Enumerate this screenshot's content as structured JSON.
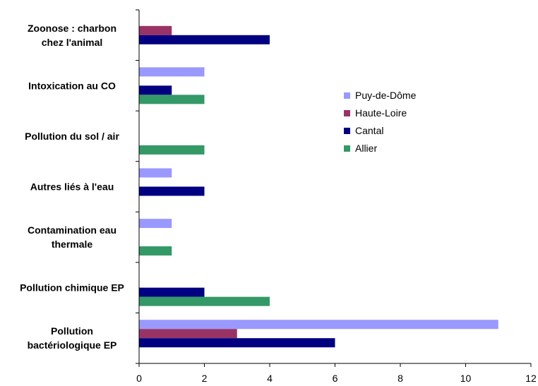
{
  "chart_data": {
    "type": "bar",
    "orientation": "horizontal",
    "title": "",
    "xlabel": "",
    "ylabel": "",
    "xlim": [
      0,
      12
    ],
    "x_ticks": [
      0,
      2,
      4,
      6,
      8,
      10,
      12
    ],
    "grid": false,
    "legend_position": "right",
    "categories": [
      [
        "Zoonose : charbon",
        "chez l'animal"
      ],
      [
        "Intoxication au CO"
      ],
      [
        "Pollution du sol / air"
      ],
      [
        "Autres liés à l'eau"
      ],
      [
        "Contamination eau",
        "thermale"
      ],
      [
        "Pollution chimique EP"
      ],
      [
        "Pollution",
        "bactériologique EP"
      ]
    ],
    "series": [
      {
        "name": "Puy-de-Dôme",
        "color": "#9999ff",
        "values": [
          0,
          2,
          0,
          1,
          1,
          0,
          11
        ]
      },
      {
        "name": "Haute-Loire",
        "color": "#993366",
        "values": [
          1,
          0,
          0,
          0,
          0,
          0,
          3
        ]
      },
      {
        "name": "Cantal",
        "color": "#000080",
        "values": [
          4,
          1,
          0,
          2,
          0,
          2,
          6
        ]
      },
      {
        "name": "Allier",
        "color": "#339966",
        "values": [
          0,
          2,
          2,
          0,
          1,
          4,
          0
        ]
      }
    ]
  }
}
